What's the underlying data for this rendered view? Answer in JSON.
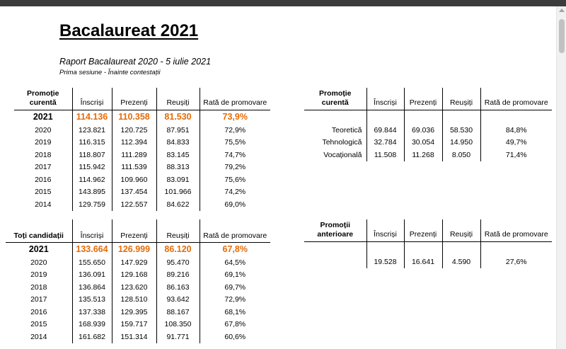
{
  "title": "Bacalaureat 2021",
  "report": {
    "title": "Raport Bacalaureat 2020 - 5 iulie 2021",
    "subtitle": "Prima sesiune - Înainte contestații"
  },
  "curent_table": {
    "header_line1": "Promoție",
    "header_line2": "curentă",
    "columns": [
      "Înscriși",
      "Prezenți",
      "Reușiți",
      "Rată de promovare"
    ],
    "highlight": {
      "year": "2021",
      "values": [
        "114.136",
        "110.358",
        "81.530",
        "73,9%"
      ]
    },
    "rows": [
      {
        "year": "2020",
        "values": [
          "123.821",
          "120.725",
          "87.951",
          "72,9%"
        ]
      },
      {
        "year": "2019",
        "values": [
          "116.315",
          "112.394",
          "84.833",
          "75,5%"
        ]
      },
      {
        "year": "2018",
        "values": [
          "118.807",
          "111.289",
          "83.145",
          "74,7%"
        ]
      },
      {
        "year": "2017",
        "values": [
          "115.942",
          "111.539",
          "88.313",
          "79,2%"
        ]
      },
      {
        "year": "2016",
        "values": [
          "114.962",
          "109.960",
          "83.091",
          "75,6%"
        ]
      },
      {
        "year": "2015",
        "values": [
          "143.895",
          "137.454",
          "101.966",
          "74,2%"
        ]
      },
      {
        "year": "2014",
        "values": [
          "129.759",
          "122.557",
          "84.622",
          "69,0%"
        ]
      }
    ]
  },
  "toti_table": {
    "header": "Toți candidații",
    "columns": [
      "Înscriși",
      "Prezenți",
      "Reușiți",
      "Rată de promovare"
    ],
    "highlight": {
      "year": "2021",
      "values": [
        "133.664",
        "126.999",
        "86.120",
        "67,8%"
      ]
    },
    "rows": [
      {
        "year": "2020",
        "values": [
          "155.650",
          "147.929",
          "95.470",
          "64,5%"
        ]
      },
      {
        "year": "2019",
        "values": [
          "136.091",
          "129.168",
          "89.216",
          "69,1%"
        ]
      },
      {
        "year": "2018",
        "values": [
          "136.864",
          "123.620",
          "86.163",
          "69,7%"
        ]
      },
      {
        "year": "2017",
        "values": [
          "135.513",
          "128.510",
          "93.642",
          "72,9%"
        ]
      },
      {
        "year": "2016",
        "values": [
          "137.338",
          "129.395",
          "88.167",
          "68,1%"
        ]
      },
      {
        "year": "2015",
        "values": [
          "168.939",
          "159.717",
          "108.350",
          "67,8%"
        ]
      },
      {
        "year": "2014",
        "values": [
          "161.682",
          "151.314",
          "91.771",
          "60,6%"
        ]
      }
    ]
  },
  "filiera_table": {
    "header_line1": "Promoție",
    "header_line2": "curentă",
    "columns": [
      "Înscriși",
      "Prezenți",
      "Reușiți",
      "Rată de promovare"
    ],
    "rows": [
      {
        "name": "Teoretică",
        "values": [
          "69.844",
          "69.036",
          "58.530",
          "84,8%"
        ]
      },
      {
        "name": "Tehnologică",
        "values": [
          "32.784",
          "30.054",
          "14.950",
          "49,7%"
        ]
      },
      {
        "name": "Vocațională",
        "values": [
          "11.508",
          "11.268",
          "8.050",
          "71,4%"
        ]
      }
    ]
  },
  "anterioare_table": {
    "header_line1": "Promoții",
    "header_line2": "anterioare",
    "columns": [
      "Înscriși",
      "Prezenți",
      "Reușiți",
      "Rată de promovare"
    ],
    "row": {
      "values": [
        "19.528",
        "16.641",
        "4.590",
        "27,6%"
      ]
    }
  },
  "colors": {
    "highlight": "#e46c0a",
    "topbar": "#3c3c3c"
  }
}
